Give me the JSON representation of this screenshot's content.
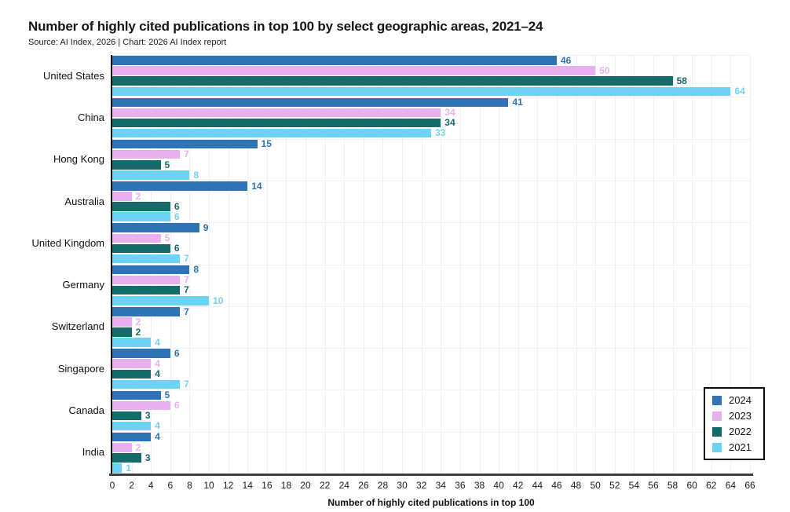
{
  "header": {
    "title": "Number of highly cited publications in top 100 by select geographic areas, 2021–24",
    "subtitle": "Source: AI Index, 2026 | Chart: 2026 AI Index report"
  },
  "chart_data": {
    "type": "bar",
    "orientation": "horizontal",
    "title": "Number of highly cited publications in top 100 by select geographic areas, 2021–24",
    "xlabel": "Number of highly cited publications in top 100",
    "ylabel": "",
    "xlim": [
      0,
      66
    ],
    "xtick_step": 2,
    "grid": true,
    "legend_position": "bottom-right",
    "categories": [
      "United States",
      "China",
      "Hong Kong",
      "Australia",
      "United Kingdom",
      "Germany",
      "Switzerland",
      "Singapore",
      "Canada",
      "India"
    ],
    "series": [
      {
        "name": "2024",
        "color": "#2d73b5",
        "values": [
          46,
          41,
          15,
          14,
          9,
          8,
          7,
          6,
          5,
          4
        ]
      },
      {
        "name": "2023",
        "color": "#e9b0f1",
        "values": [
          50,
          34,
          7,
          2,
          5,
          7,
          2,
          4,
          6,
          2
        ]
      },
      {
        "name": "2022",
        "color": "#156a6b",
        "values": [
          58,
          34,
          5,
          6,
          6,
          7,
          2,
          4,
          3,
          3
        ]
      },
      {
        "name": "2021",
        "color": "#6ed3f3",
        "values": [
          64,
          33,
          8,
          6,
          7,
          10,
          4,
          7,
          4,
          1
        ]
      }
    ]
  },
  "colors": {
    "axis": "#111111",
    "bottom_axis": "#3e3e3e",
    "grid": "#f3f0f3"
  }
}
